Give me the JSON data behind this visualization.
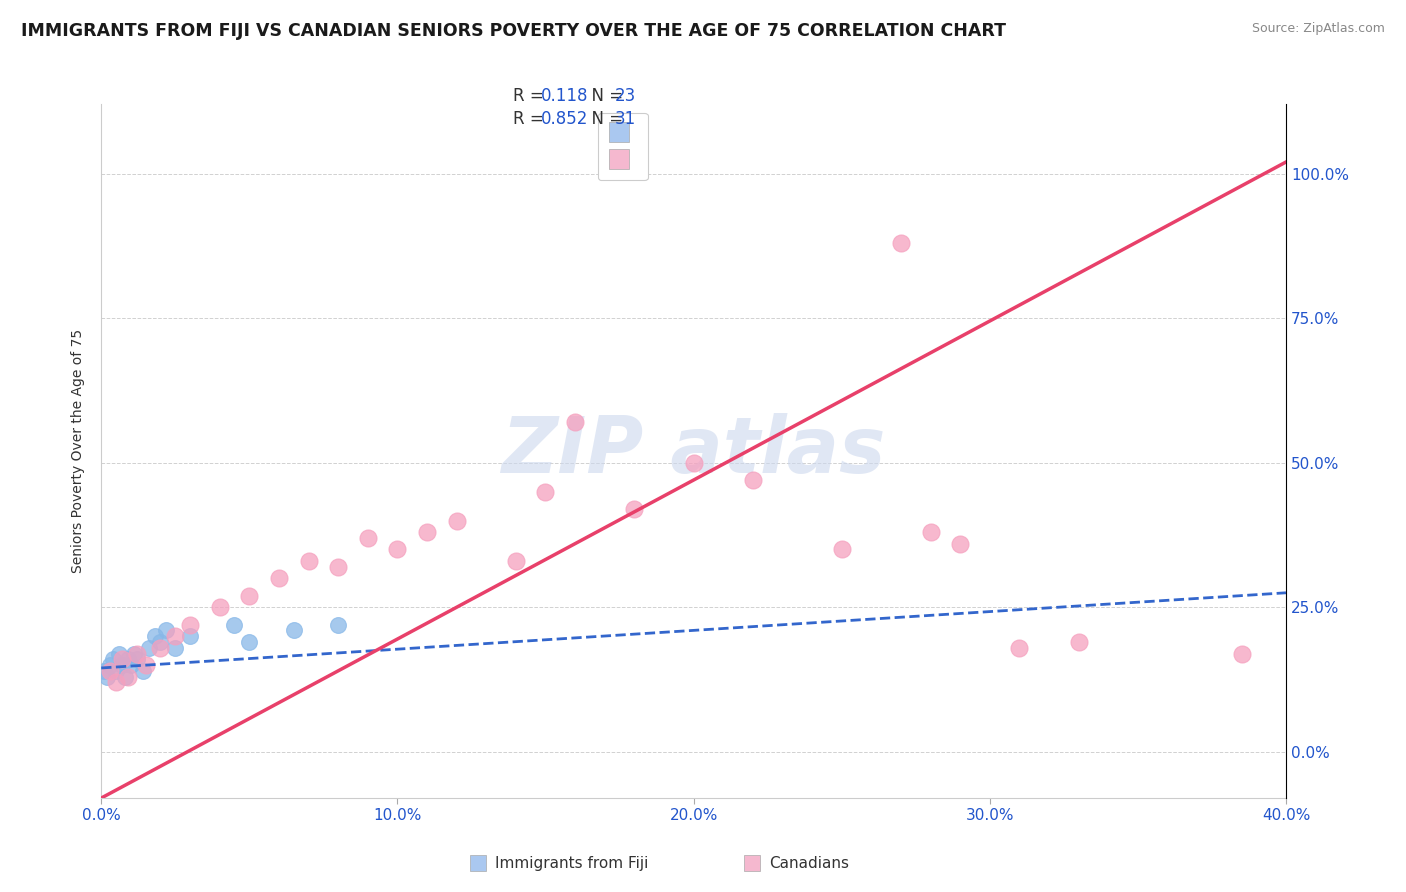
{
  "title": "IMMIGRANTS FROM FIJI VS CANADIAN SENIORS POVERTY OVER THE AGE OF 75 CORRELATION CHART",
  "source": "Source: ZipAtlas.com",
  "ylabel": "Seniors Poverty Over the Age of 75",
  "watermark_text": "ZIPatlas",
  "blue_scatter": {
    "x": [
      0.1,
      0.2,
      0.3,
      0.4,
      0.5,
      0.6,
      0.7,
      0.8,
      0.9,
      1.0,
      1.1,
      1.2,
      1.4,
      1.6,
      1.8,
      2.0,
      2.2,
      2.5,
      3.0,
      4.5,
      5.0,
      6.5,
      8.0
    ],
    "y": [
      0.14,
      0.13,
      0.15,
      0.16,
      0.14,
      0.17,
      0.15,
      0.13,
      0.16,
      0.15,
      0.17,
      0.16,
      0.14,
      0.18,
      0.2,
      0.19,
      0.21,
      0.18,
      0.2,
      0.22,
      0.19,
      0.21,
      0.22
    ]
  },
  "pink_scatter": {
    "x": [
      0.3,
      0.5,
      0.7,
      0.9,
      1.2,
      1.5,
      2.0,
      2.5,
      3.0,
      4.0,
      5.0,
      6.0,
      7.0,
      8.0,
      9.0,
      10.0,
      11.0,
      12.0,
      14.0,
      15.0,
      16.0,
      18.0,
      20.0,
      22.0,
      25.0,
      27.0,
      28.0,
      29.0,
      31.0,
      33.0,
      38.5
    ],
    "y": [
      0.14,
      0.12,
      0.16,
      0.13,
      0.17,
      0.15,
      0.18,
      0.2,
      0.22,
      0.25,
      0.27,
      0.3,
      0.33,
      0.32,
      0.37,
      0.35,
      0.38,
      0.4,
      0.33,
      0.45,
      0.57,
      0.42,
      0.5,
      0.47,
      0.35,
      0.88,
      0.38,
      0.36,
      0.18,
      0.19,
      0.17
    ]
  },
  "blue_line": {
    "x0": 0.0,
    "x1": 40.0,
    "y0": 0.145,
    "y1": 0.275
  },
  "pink_line": {
    "x0": 0.0,
    "x1": 40.0,
    "y0": -0.08,
    "y1": 1.02
  },
  "xlim": [
    0.0,
    40.0
  ],
  "ylim": [
    -0.08,
    1.12
  ],
  "yticks": [
    0.0,
    0.25,
    0.5,
    0.75,
    1.0
  ],
  "yticklabels_right": [
    "0.0%",
    "25.0%",
    "50.0%",
    "75.0%",
    "100.0%"
  ],
  "xticks": [
    0.0,
    10.0,
    20.0,
    30.0,
    40.0
  ],
  "xticklabels": [
    "0.0%",
    "10.0%",
    "20.0%",
    "30.0%",
    "40.0%"
  ],
  "blue_color": "#88b8e8",
  "pink_color": "#f5a0be",
  "blue_line_color": "#3366cc",
  "pink_line_color": "#e8406a",
  "grid_color": "#cccccc",
  "background_color": "#ffffff",
  "title_fontsize": 12.5,
  "source_fontsize": 9,
  "axis_label_fontsize": 10,
  "tick_fontsize": 11,
  "legend_R_color": "#2255cc",
  "legend_text_color": "#333333",
  "legend_entry1": {
    "R": "0.118",
    "N": "23"
  },
  "legend_entry2": {
    "R": "0.852",
    "N": "31"
  },
  "bottom_legend_labels": [
    "Immigrants from Fiji",
    "Canadians"
  ],
  "blue_patch_color": "#aac8f0",
  "pink_patch_color": "#f5b8cf"
}
